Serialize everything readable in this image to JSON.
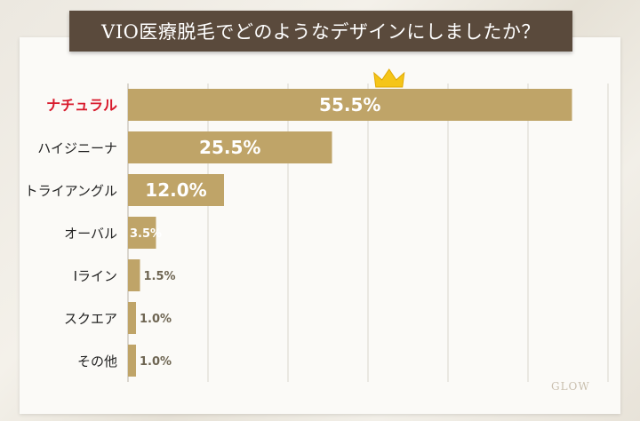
{
  "title": "VIO医療脱毛でどのようなデザインにしましたか？",
  "brand": "GLOW",
  "colors": {
    "bar": "#bfa468",
    "highlight_label": "#d8192b",
    "label": "#222222",
    "value_inside": "#ffffff",
    "value_outside": "#6e6552",
    "grid": "#d9d5cc",
    "crown": "#f5c518"
  },
  "chart_data": {
    "type": "bar",
    "orientation": "horizontal",
    "categories": [
      "ナチュラル",
      "ハイジニーナ",
      "トライアングル",
      "オーバル",
      "Iライン",
      "スクエア",
      "その他"
    ],
    "values": [
      55.5,
      25.5,
      12.0,
      3.5,
      1.5,
      1.0,
      1.0
    ],
    "value_labels": [
      "55.5%",
      "25.5%",
      "12.0%",
      "3.5%",
      "1.5%",
      "1.0%",
      "1.0%"
    ],
    "xlim": [
      0,
      60
    ],
    "grid": true,
    "highlight_index": 0,
    "highlight_icon": "crown-icon"
  }
}
